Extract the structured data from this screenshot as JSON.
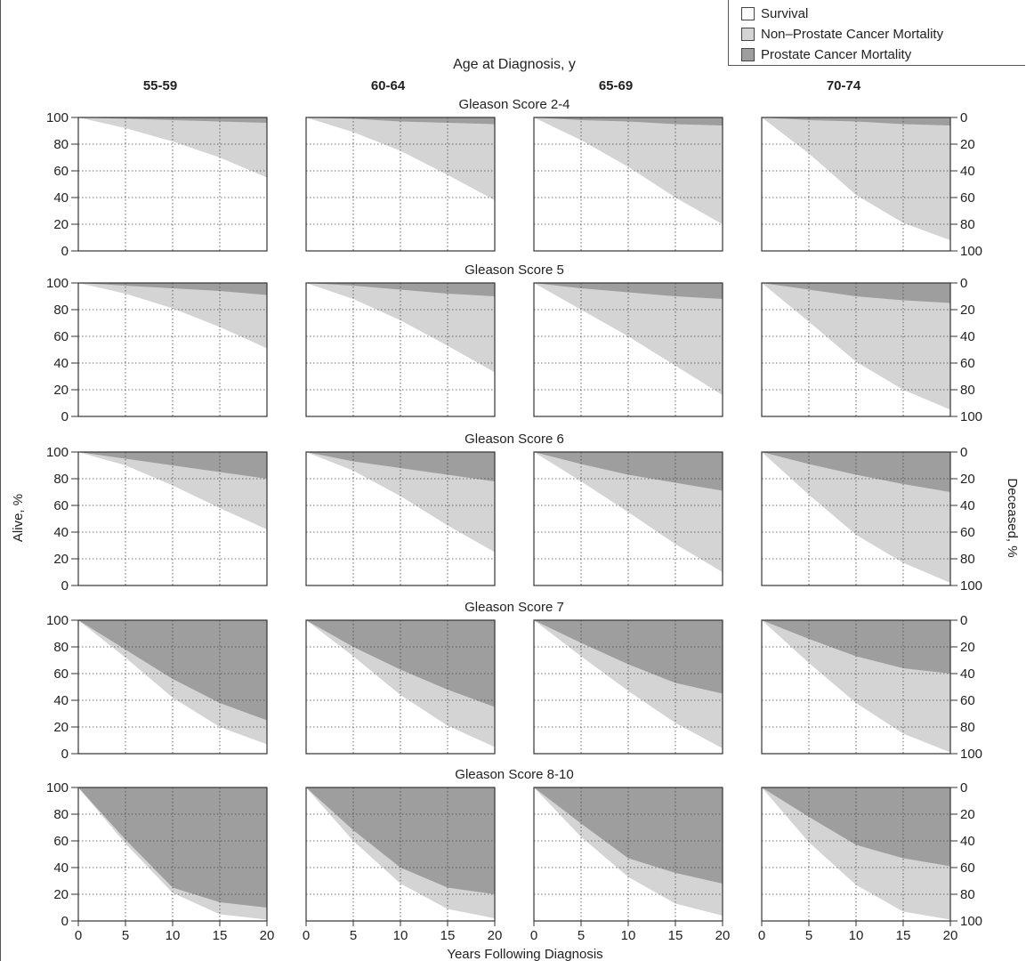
{
  "figure": {
    "header": "Age at Diagnosis, y",
    "y_left_label": "Alive, %",
    "y_right_label": "Deceased, %",
    "x_label": "Years Following Diagnosis"
  },
  "legend": {
    "placement": "top-right",
    "items": [
      {
        "label": "Survival",
        "color": "#ffffff"
      },
      {
        "label": "Non–Prostate Cancer Mortality",
        "color": "#d4d4d4"
      },
      {
        "label": "Prostate Cancer Mortality",
        "color": "#9e9e9e"
      }
    ]
  },
  "colors": {
    "survival": "#ffffff",
    "other": "#d4d4d4",
    "prostate": "#9e9e9e",
    "frame": "#333333"
  },
  "chart_data": {
    "type": "area",
    "stacked": true,
    "x_ticks": [
      0,
      5,
      10,
      15,
      20
    ],
    "y_ticks_left": [
      0,
      20,
      40,
      60,
      80,
      100
    ],
    "y_ticks_right": [
      0,
      20,
      40,
      60,
      80,
      100
    ],
    "xlim": [
      0,
      20
    ],
    "ylim": [
      0,
      100
    ],
    "grid": "dotted",
    "age_groups": [
      "55-59",
      "60-64",
      "65-69",
      "70-74"
    ],
    "gleason_scores": [
      "Gleason Score 2-4",
      "Gleason Score 5",
      "Gleason Score 6",
      "Gleason Score 7",
      "Gleason Score 8-10"
    ],
    "x": [
      0,
      5,
      10,
      15,
      20
    ],
    "panels": [
      [
        {
          "survival": [
            100,
            92,
            82,
            70,
            55
          ],
          "prostate_mortality": [
            0,
            1,
            2,
            3,
            4
          ]
        },
        {
          "survival": [
            100,
            89,
            75,
            57,
            38
          ],
          "prostate_mortality": [
            0,
            1,
            3,
            4,
            5
          ]
        },
        {
          "survival": [
            100,
            83,
            63,
            40,
            20
          ],
          "prostate_mortality": [
            0,
            2,
            3,
            5,
            6
          ]
        },
        {
          "survival": [
            100,
            73,
            42,
            21,
            8
          ],
          "prostate_mortality": [
            0,
            2,
            3,
            5,
            6
          ]
        }
      ],
      [
        {
          "survival": [
            100,
            92,
            81,
            67,
            51
          ],
          "prostate_mortality": [
            0,
            2,
            4,
            6,
            9
          ]
        },
        {
          "survival": [
            100,
            88,
            72,
            53,
            33
          ],
          "prostate_mortality": [
            0,
            2,
            5,
            8,
            10
          ]
        },
        {
          "survival": [
            100,
            80,
            60,
            38,
            16
          ],
          "prostate_mortality": [
            0,
            4,
            7,
            10,
            12
          ]
        },
        {
          "survival": [
            100,
            71,
            41,
            20,
            5
          ],
          "prostate_mortality": [
            0,
            5,
            10,
            13,
            15
          ]
        }
      ],
      [
        {
          "survival": [
            100,
            90,
            75,
            58,
            42
          ],
          "prostate_mortality": [
            0,
            5,
            10,
            15,
            20
          ]
        },
        {
          "survival": [
            100,
            86,
            67,
            45,
            25
          ],
          "prostate_mortality": [
            0,
            7,
            12,
            17,
            22
          ]
        },
        {
          "survival": [
            100,
            78,
            55,
            31,
            10
          ],
          "prostate_mortality": [
            0,
            9,
            17,
            23,
            29
          ]
        },
        {
          "survival": [
            100,
            68,
            38,
            17,
            2
          ],
          "prostate_mortality": [
            0,
            9,
            17,
            24,
            30
          ]
        }
      ],
      [
        {
          "survival": [
            100,
            72,
            42,
            20,
            7
          ],
          "prostate_mortality": [
            0,
            22,
            44,
            62,
            75
          ]
        },
        {
          "survival": [
            100,
            73,
            44,
            21,
            5
          ],
          "prostate_mortality": [
            0,
            20,
            37,
            52,
            65
          ]
        },
        {
          "survival": [
            100,
            73,
            47,
            23,
            4
          ],
          "prostate_mortality": [
            0,
            17,
            33,
            47,
            55
          ]
        },
        {
          "survival": [
            100,
            68,
            38,
            15,
            1
          ],
          "prostate_mortality": [
            0,
            14,
            27,
            36,
            40
          ]
        }
      ],
      [
        {
          "survival": [
            100,
            58,
            21,
            5,
            1
          ],
          "prostate_mortality": [
            0,
            39,
            75,
            86,
            90
          ]
        },
        {
          "survival": [
            100,
            60,
            28,
            9,
            2
          ],
          "prostate_mortality": [
            0,
            32,
            60,
            75,
            80
          ]
        },
        {
          "survival": [
            100,
            63,
            33,
            13,
            4
          ],
          "prostate_mortality": [
            0,
            27,
            53,
            64,
            72
          ]
        },
        {
          "survival": [
            100,
            59,
            27,
            7,
            1
          ],
          "prostate_mortality": [
            0,
            22,
            43,
            53,
            59
          ]
        }
      ]
    ]
  }
}
